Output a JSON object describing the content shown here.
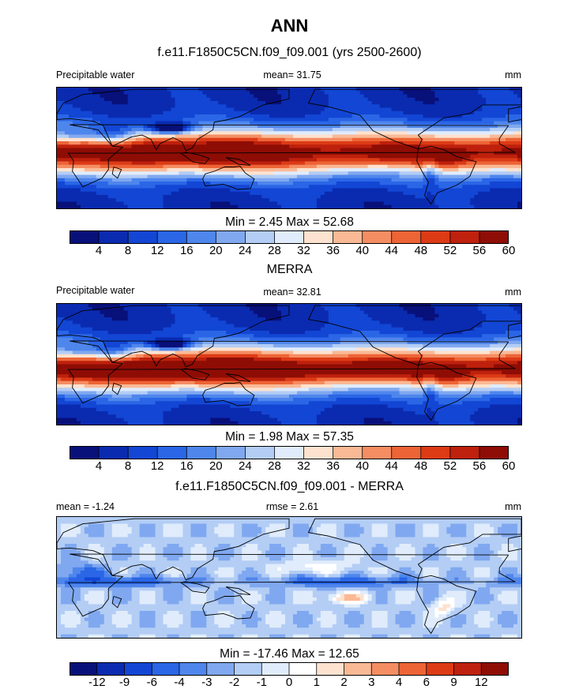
{
  "title": "ANN",
  "palettes": {
    "abs": [
      "#08107a",
      "#0a2bb0",
      "#1346d4",
      "#2a66e6",
      "#4f86ec",
      "#80a8f0",
      "#b3cdf5",
      "#e0ecfb",
      "#fde2cf",
      "#fab995",
      "#f58d62",
      "#ed6436",
      "#dc3b16",
      "#be210d",
      "#8e0d05"
    ],
    "diff": [
      "#08107a",
      "#0a2bb0",
      "#1346d4",
      "#2a66e6",
      "#4f86ec",
      "#80a8f0",
      "#b3cdf5",
      "#e0ecfb",
      "#ffffff",
      "#fde2cf",
      "#fab995",
      "#f58d62",
      "#ed6436",
      "#dc3b16",
      "#be210d",
      "#8e0d05"
    ],
    "land_outline": "#000000"
  },
  "panels": [
    {
      "title": "f.e11.F1850C5CN.f09_f09.001 (yrs 2500-2600)",
      "left_label": "Precipitable water",
      "center_label": "mean=  31.75",
      "units": "mm",
      "minmax": "Min =   2.45 Max =  52.68"
    },
    {
      "title": "MERRA",
      "left_label": "Precipitable water",
      "center_label": "mean=  32.81",
      "units": "mm",
      "minmax": "Min =   1.98 Max =  57.35"
    },
    {
      "title": "f.e11.F1850C5CN.f09_f09.001 - MERRA",
      "left_label": "mean =  -1.24",
      "center_label": "rmse =   2.61",
      "units": "mm",
      "minmax": "Min = -17.46 Max =  12.65"
    }
  ],
  "chart_data": [
    {
      "type": "heatmap",
      "title": "f.e11.F1850C5CN.f09_f09.001 (yrs 2500-2600)",
      "variable": "Precipitable water",
      "units": "mm",
      "mean": 31.75,
      "min": 2.45,
      "max": 52.68,
      "colorbar_levels": [
        4,
        8,
        12,
        16,
        20,
        24,
        28,
        32,
        36,
        40,
        44,
        48,
        52,
        56,
        60
      ],
      "colorbar_labels": [
        "4",
        "8",
        "12",
        "16",
        "20",
        "24",
        "28",
        "32",
        "36",
        "40",
        "44",
        "48",
        "52",
        "56",
        "60"
      ]
    },
    {
      "type": "heatmap",
      "title": "MERRA",
      "variable": "Precipitable water",
      "units": "mm",
      "mean": 32.81,
      "min": 1.98,
      "max": 57.35,
      "colorbar_levels": [
        4,
        8,
        12,
        16,
        20,
        24,
        28,
        32,
        36,
        40,
        44,
        48,
        52,
        56,
        60
      ],
      "colorbar_labels": [
        "4",
        "8",
        "12",
        "16",
        "20",
        "24",
        "28",
        "32",
        "36",
        "40",
        "44",
        "48",
        "52",
        "56",
        "60"
      ]
    },
    {
      "type": "heatmap",
      "title": "f.e11.F1850C5CN.f09_f09.001 - MERRA",
      "units": "mm",
      "mean": -1.24,
      "rmse": 2.61,
      "min": -17.46,
      "max": 12.65,
      "colorbar_levels": [
        -12,
        -9,
        -6,
        -4,
        -3,
        -2,
        -1,
        0,
        1,
        2,
        3,
        4,
        6,
        9,
        12
      ],
      "colorbar_labels": [
        "-12",
        "-9",
        "-6",
        "-4",
        "-3",
        "-2",
        "-1",
        "0",
        "1",
        "2",
        "3",
        "4",
        "6",
        "9",
        "12"
      ]
    }
  ]
}
